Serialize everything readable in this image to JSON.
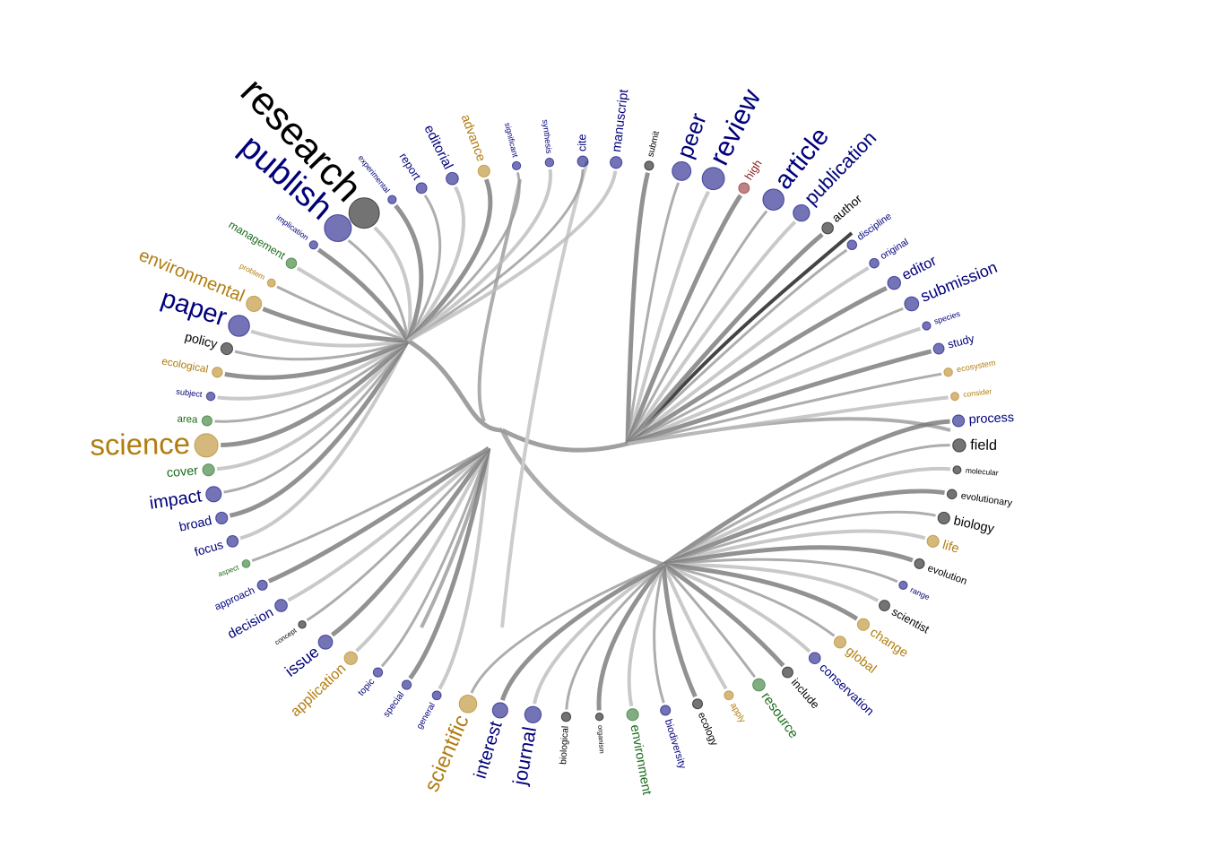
{
  "nodes": [
    {
      "label": "cite",
      "weight": 1.5,
      "color": "#00007a"
    },
    {
      "label": "manuscript",
      "weight": 2,
      "color": "#00007a"
    },
    {
      "label": "submit",
      "weight": 0.8,
      "color": "#000000"
    },
    {
      "label": "peer",
      "weight": 5,
      "color": "#00007a"
    },
    {
      "label": "review",
      "weight": 6.5,
      "color": "#00007a"
    },
    {
      "label": "high",
      "weight": 1.5,
      "color": "#8b1a1a"
    },
    {
      "label": "article",
      "weight": 6,
      "color": "#00007a"
    },
    {
      "label": "publication",
      "weight": 4,
      "color": "#00007a"
    },
    {
      "label": "author",
      "weight": 1.8,
      "color": "#000000"
    },
    {
      "label": "discipline",
      "weight": 1,
      "color": "#00007a"
    },
    {
      "label": "original",
      "weight": 1,
      "color": "#00007a"
    },
    {
      "label": "editor",
      "weight": 2.5,
      "color": "#00007a"
    },
    {
      "label": "submission",
      "weight": 3,
      "color": "#00007a"
    },
    {
      "label": "species",
      "weight": 0.5,
      "color": "#00007a"
    },
    {
      "label": "study",
      "weight": 1.5,
      "color": "#00007a"
    },
    {
      "label": "ecosystem",
      "weight": 0.6,
      "color": "#b07d10"
    },
    {
      "label": "consider",
      "weight": 0.4,
      "color": "#b07d10"
    },
    {
      "label": "process",
      "weight": 2,
      "color": "#00007a"
    },
    {
      "label": "field",
      "weight": 2.5,
      "color": "#000000"
    },
    {
      "label": "molecular",
      "weight": 0.4,
      "color": "#000000"
    },
    {
      "label": "evolutionary",
      "weight": 1,
      "color": "#000000"
    },
    {
      "label": "biology",
      "weight": 2,
      "color": "#000000"
    },
    {
      "label": "life",
      "weight": 2,
      "color": "#b07d10"
    },
    {
      "label": "evolution",
      "weight": 1.2,
      "color": "#000000"
    },
    {
      "label": "range",
      "weight": 0.5,
      "color": "#00007a"
    },
    {
      "label": "scientist",
      "weight": 1.5,
      "color": "#000000"
    },
    {
      "label": "change",
      "weight": 2,
      "color": "#b07d10"
    },
    {
      "label": "global",
      "weight": 2,
      "color": "#b07d10"
    },
    {
      "label": "conservation",
      "weight": 1.8,
      "color": "#00007a"
    },
    {
      "label": "include",
      "weight": 1.5,
      "color": "#000000"
    },
    {
      "label": "resource",
      "weight": 2.2,
      "color": "#1a6b1a"
    },
    {
      "label": "apply",
      "weight": 0.8,
      "color": "#b07d10"
    },
    {
      "label": "ecology",
      "weight": 1.2,
      "color": "#000000"
    },
    {
      "label": "biodiversity",
      "weight": 1.2,
      "color": "#00007a"
    },
    {
      "label": "environment",
      "weight": 2,
      "color": "#1a6b1a"
    },
    {
      "label": "organism",
      "weight": 0.2,
      "color": "#000000"
    },
    {
      "label": "biological",
      "weight": 0.9,
      "color": "#000000"
    },
    {
      "label": "journal",
      "weight": 4,
      "color": "#00007a"
    },
    {
      "label": "interest",
      "weight": 3.5,
      "color": "#00007a"
    },
    {
      "label": "scientific",
      "weight": 4.5,
      "color": "#b07d10"
    },
    {
      "label": "general",
      "weight": 0.7,
      "color": "#00007a"
    },
    {
      "label": "special",
      "weight": 0.9,
      "color": "#00007a"
    },
    {
      "label": "topic",
      "weight": 0.9,
      "color": "#00007a"
    },
    {
      "label": "application",
      "weight": 2.5,
      "color": "#b07d10"
    },
    {
      "label": "issue",
      "weight": 3,
      "color": "#00007a"
    },
    {
      "label": "concept",
      "weight": 0.2,
      "color": "#000000"
    },
    {
      "label": "decision",
      "weight": 2.2,
      "color": "#00007a"
    },
    {
      "label": "approach",
      "weight": 1.2,
      "color": "#00007a"
    },
    {
      "label": "aspect",
      "weight": 0.3,
      "color": "#1a6b1a"
    },
    {
      "label": "focus",
      "weight": 1.8,
      "color": "#00007a"
    },
    {
      "label": "broad",
      "weight": 2,
      "color": "#00007a"
    },
    {
      "label": "impact",
      "weight": 3.5,
      "color": "#00007a"
    },
    {
      "label": "cover",
      "weight": 2,
      "color": "#1a6b1a"
    },
    {
      "label": "science",
      "weight": 7,
      "color": "#b07d10"
    },
    {
      "label": "area",
      "weight": 1.2,
      "color": "#1a6b1a"
    },
    {
      "label": "subject",
      "weight": 0.6,
      "color": "#00007a"
    },
    {
      "label": "ecological",
      "weight": 1.3,
      "color": "#b07d10"
    },
    {
      "label": "policy",
      "weight": 2,
      "color": "#000000"
    },
    {
      "label": "paper",
      "weight": 6,
      "color": "#00007a"
    },
    {
      "label": "environmental",
      "weight": 3.5,
      "color": "#b07d10"
    },
    {
      "label": "problem",
      "weight": 0.4,
      "color": "#b07d10"
    },
    {
      "label": "management",
      "weight": 1.4,
      "color": "#1a6b1a"
    },
    {
      "label": "implication",
      "weight": 0.5,
      "color": "#00007a"
    },
    {
      "label": "publish",
      "weight": 8.5,
      "color": "#00007a"
    },
    {
      "label": "research",
      "weight": 10,
      "color": "#000000"
    },
    {
      "label": "experimental",
      "weight": 0.5,
      "color": "#00007a"
    },
    {
      "label": "report",
      "weight": 1.5,
      "color": "#00007a"
    },
    {
      "label": "editorial",
      "weight": 2.2,
      "color": "#00007a"
    },
    {
      "label": "advance",
      "weight": 2,
      "color": "#b07d10"
    },
    {
      "label": "significant",
      "weight": 0.5,
      "color": "#00007a"
    },
    {
      "label": "synthesis",
      "weight": 0.6,
      "color": "#00007a"
    }
  ]
}
